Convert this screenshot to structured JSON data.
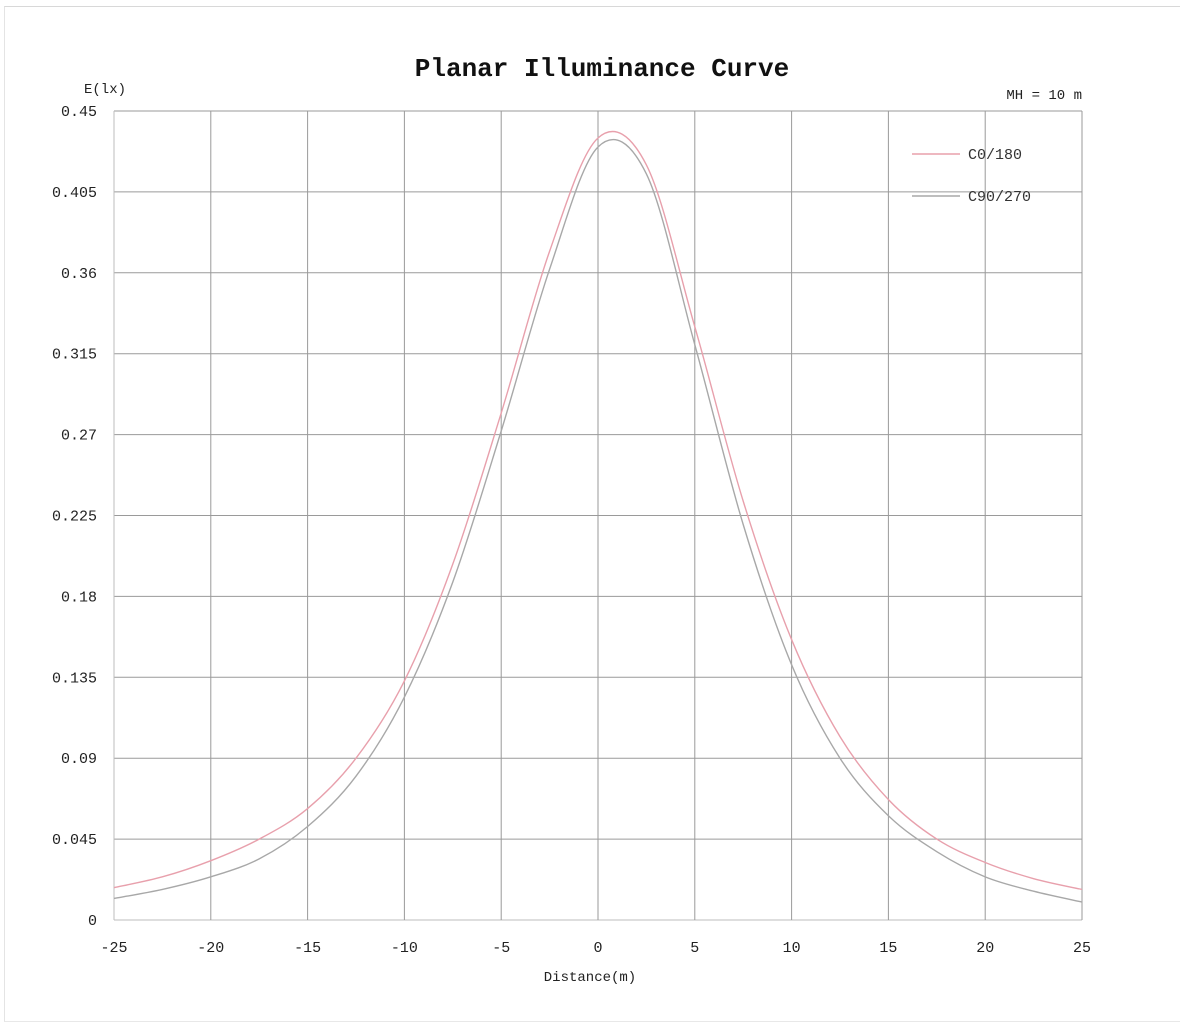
{
  "chart_data": {
    "type": "line",
    "title": "Planar Illuminance Curve",
    "annotation": "MH = 10 m",
    "xlabel": "Distance(m)",
    "ylabel": "E(lx)",
    "xlim": [
      -25,
      25
    ],
    "ylim": [
      0,
      0.45
    ],
    "x_ticks": [
      "-25",
      "-20",
      "-15",
      "-10",
      "-5",
      "0",
      "5",
      "10",
      "15",
      "20",
      "25"
    ],
    "y_ticks": [
      "0",
      "0.045",
      "0.09",
      "0.135",
      "0.18",
      "0.225",
      "0.27",
      "0.315",
      "0.36",
      "0.405",
      "0.45"
    ],
    "grid": true,
    "legend_position": "top-right",
    "x": [
      -25,
      -22.5,
      -20,
      -17.5,
      -15,
      -12.5,
      -10,
      -7.5,
      -5,
      -2.5,
      0,
      2.5,
      5,
      7.5,
      10,
      12.5,
      15,
      17.5,
      20,
      22.5,
      25
    ],
    "series": [
      {
        "name": "C0/180",
        "color": "#e8a0ac",
        "values": [
          0.018,
          0.024,
          0.033,
          0.045,
          0.062,
          0.09,
          0.133,
          0.198,
          0.282,
          0.372,
          0.435,
          0.42,
          0.33,
          0.233,
          0.156,
          0.102,
          0.067,
          0.045,
          0.032,
          0.023,
          0.017
        ]
      },
      {
        "name": "C90/270",
        "color": "#a8a8a8",
        "values": [
          0.012,
          0.017,
          0.024,
          0.034,
          0.052,
          0.08,
          0.124,
          0.188,
          0.272,
          0.362,
          0.43,
          0.415,
          0.32,
          0.22,
          0.142,
          0.09,
          0.058,
          0.038,
          0.024,
          0.016,
          0.01
        ]
      }
    ]
  }
}
